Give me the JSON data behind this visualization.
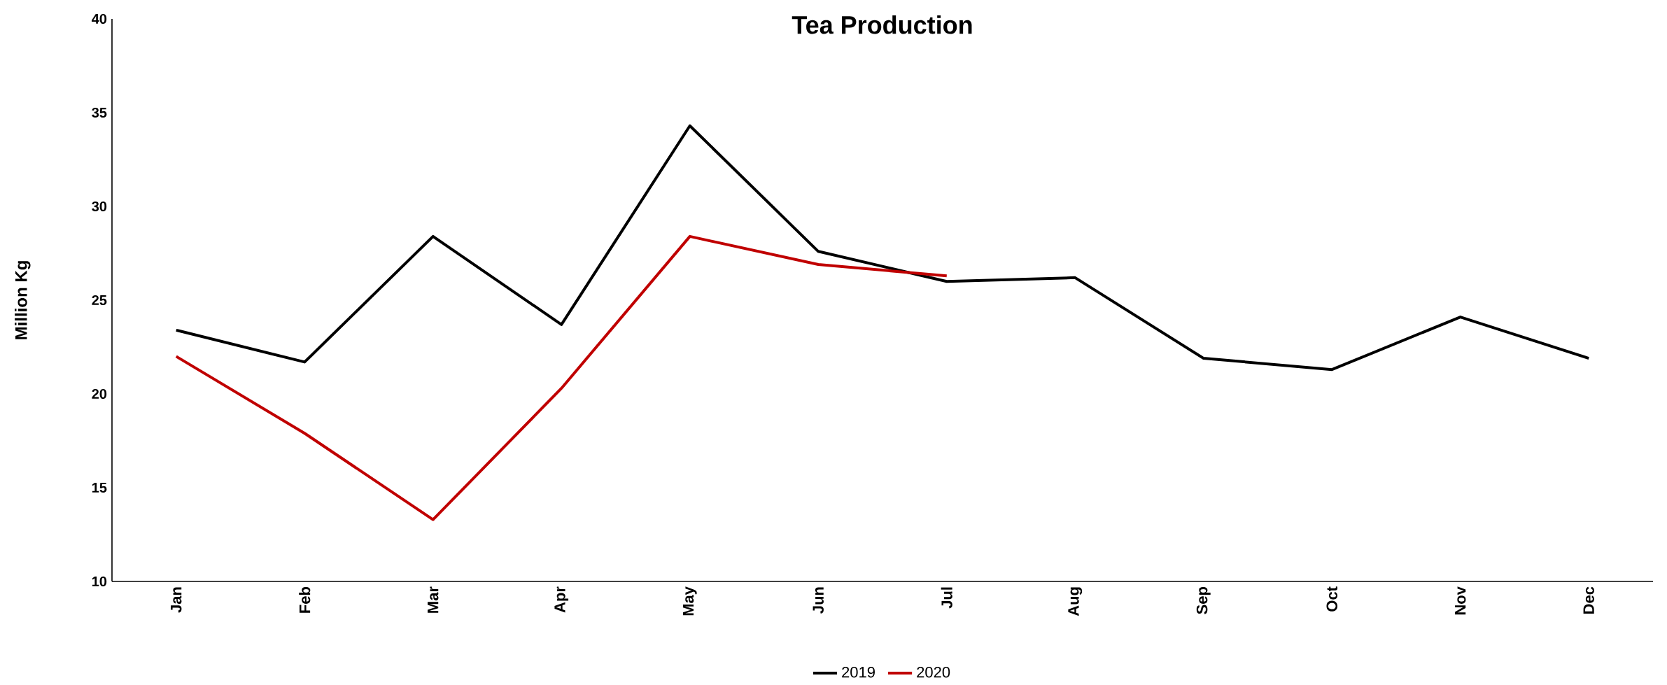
{
  "chart_data": {
    "type": "line",
    "title": "Tea Production",
    "ylabel": "Million Kg",
    "categories": [
      "Jan",
      "Feb",
      "Mar",
      "Apr",
      "May",
      "Jun",
      "Jul",
      "Aug",
      "Sep",
      "Oct",
      "Nov",
      "Dec"
    ],
    "series": [
      {
        "name": "2019",
        "color": "#000000",
        "values": [
          23.4,
          21.7,
          28.4,
          23.7,
          34.3,
          27.6,
          26.0,
          26.2,
          21.9,
          21.3,
          24.1,
          21.9
        ]
      },
      {
        "name": "2020",
        "color": "#c00000",
        "values": [
          22.0,
          17.9,
          13.3,
          20.3,
          28.4,
          26.9,
          26.3,
          null,
          null,
          null,
          null,
          null
        ]
      }
    ],
    "ylim": [
      10,
      40
    ],
    "yticks": [
      10,
      15,
      20,
      25,
      30,
      35,
      40
    ],
    "grid": false,
    "legend": "bottom",
    "marker": "none",
    "line_style": "solid"
  }
}
